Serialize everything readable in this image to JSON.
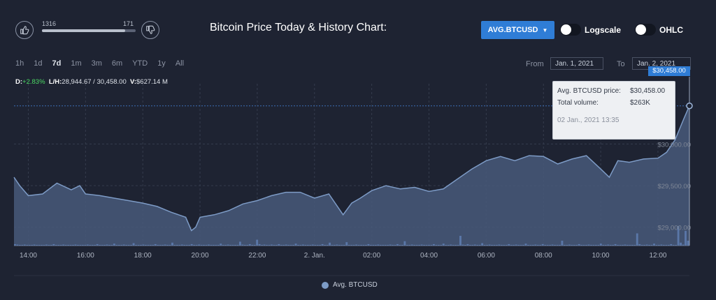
{
  "votes": {
    "up_count": "1316",
    "down_count": "171",
    "ratio": 0.885
  },
  "title": "Bitcoin Price Today & History Chart:",
  "series_button": {
    "label": "AVG.BTCUSD"
  },
  "toggles": {
    "logscale_label": "Logscale",
    "ohlc_label": "OHLC"
  },
  "ranges": [
    {
      "label": "1h",
      "active": false
    },
    {
      "label": "1d",
      "active": false
    },
    {
      "label": "7d",
      "active": true
    },
    {
      "label": "1m",
      "active": false
    },
    {
      "label": "3m",
      "active": false
    },
    {
      "label": "6m",
      "active": false
    },
    {
      "label": "YTD",
      "active": false
    },
    {
      "label": "1y",
      "active": false
    },
    {
      "label": "All",
      "active": false
    }
  ],
  "date_range": {
    "from_label": "From",
    "from_value": "Jan. 1, 2021",
    "to_label": "To",
    "to_value": "Jan. 2, 2021"
  },
  "stats": {
    "d_label": "D:",
    "d_value": "+2.83%",
    "lh_label": "L/H:",
    "lh_value": "28,944.67 / 30,458.00",
    "v_label": "V:",
    "v_value": "$627.14 M"
  },
  "tooltip": {
    "price_label": "Avg. BTCUSD price:",
    "price_value": "$30,458.00",
    "volume_label": "Total volume:",
    "volume_value": "$263K",
    "time": "02 Jan., 2021 13:35"
  },
  "price_flag": "$30,458.00",
  "colors": {
    "line": "#7d9bc6",
    "area": "#48597a",
    "volume": "#5a77a8",
    "grid": "#353c4d",
    "accent": "#2f7dd6"
  },
  "chart_data": {
    "type": "area",
    "x_ticks": [
      "14:00",
      "16:00",
      "18:00",
      "20:00",
      "22:00",
      "2. Jan.",
      "02:00",
      "04:00",
      "06:00",
      "08:00",
      "10:00",
      "12:00"
    ],
    "y_ticks": [
      "$29,000.00",
      "$29,500.00",
      "$30,000.00"
    ],
    "y_tick_values": [
      29000,
      29500,
      30000
    ],
    "ylim": [
      28780,
      30640
    ],
    "xlim": [
      13.5,
      37.1
    ],
    "series": [
      {
        "name": "Avg. BTCUSD",
        "x": [
          13.5,
          13.7,
          14.0,
          14.5,
          15.0,
          15.5,
          15.8,
          16.0,
          16.5,
          17.0,
          17.5,
          18.0,
          18.5,
          19.0,
          19.5,
          19.7,
          19.85,
          20.0,
          20.5,
          21.0,
          21.5,
          22.0,
          22.5,
          23.0,
          23.5,
          24.0,
          24.5,
          25.0,
          25.3,
          25.6,
          26.0,
          26.5,
          27.0,
          27.5,
          28.0,
          28.5,
          29.0,
          29.5,
          30.0,
          30.5,
          31.0,
          31.5,
          32.0,
          32.5,
          33.0,
          33.5,
          34.0,
          34.3,
          34.6,
          35.0,
          35.5,
          36.0,
          36.3,
          36.6,
          36.9,
          37.1
        ],
        "y": [
          29600,
          29500,
          29380,
          29400,
          29530,
          29450,
          29500,
          29400,
          29380,
          29350,
          29320,
          29290,
          29250,
          29180,
          29120,
          28960,
          29000,
          29120,
          29150,
          29200,
          29280,
          29320,
          29380,
          29420,
          29420,
          29350,
          29400,
          29150,
          29290,
          29350,
          29440,
          29500,
          29460,
          29480,
          29430,
          29460,
          29580,
          29700,
          29800,
          29850,
          29800,
          29860,
          29850,
          29760,
          29820,
          29860,
          29700,
          29600,
          29800,
          29780,
          29820,
          29830,
          29900,
          30050,
          30300,
          30458
        ]
      }
    ],
    "volume": [
      3,
      2,
      1,
      1,
      2,
      1,
      1,
      1,
      2,
      1,
      1,
      1,
      1,
      2,
      1,
      1,
      3,
      1,
      1,
      1,
      2,
      1,
      1,
      1,
      1,
      2,
      1,
      1,
      1,
      1,
      2,
      1,
      1,
      1,
      3,
      1,
      1,
      1,
      2,
      1,
      1,
      4,
      1,
      1,
      1,
      2,
      1,
      1,
      1,
      5,
      1,
      1,
      1,
      2,
      1,
      1,
      1,
      1,
      3,
      1,
      1,
      1,
      2,
      1,
      1,
      6,
      1,
      1,
      1,
      2,
      1,
      1,
      1,
      3,
      1,
      1,
      2,
      1,
      1,
      1,
      2,
      1,
      1,
      1,
      1,
      4,
      1,
      1,
      2,
      1,
      1,
      1,
      1,
      8,
      2,
      1,
      1,
      3,
      1,
      1,
      12,
      3,
      1,
      2,
      1,
      1,
      2,
      1,
      1,
      3,
      1,
      1,
      2,
      1,
      1,
      1,
      4,
      1,
      1,
      2,
      1,
      1,
      1,
      2,
      1,
      1,
      1,
      3,
      1,
      1,
      6,
      1,
      1,
      2,
      1,
      1,
      1,
      7,
      1,
      1,
      1,
      2,
      1,
      1,
      1,
      1,
      3,
      1,
      1,
      1,
      2,
      1,
      1,
      1,
      1,
      2,
      1,
      1,
      3,
      1,
      1,
      9,
      1,
      1,
      2,
      1,
      1,
      1,
      2,
      1,
      1,
      1,
      1,
      3,
      1,
      1,
      1,
      4,
      1,
      1,
      2,
      1,
      1,
      1,
      20,
      2,
      1,
      3,
      1,
      1,
      2,
      1,
      1,
      5,
      1,
      1,
      2,
      1,
      1,
      1,
      2,
      1,
      1,
      1,
      3,
      1,
      1,
      2,
      1,
      1,
      1,
      4,
      1,
      1,
      1,
      2,
      1,
      1,
      3,
      1,
      1,
      1,
      2,
      1,
      1,
      1,
      10,
      1,
      1,
      2,
      1,
      1,
      1,
      3,
      1,
      1,
      1,
      2,
      1,
      1,
      1,
      1,
      4,
      1,
      1,
      2,
      1,
      1,
      3,
      1,
      1,
      1,
      2,
      1,
      1,
      1,
      1,
      25,
      3,
      1,
      1,
      2,
      1,
      1,
      4,
      1,
      1,
      2,
      1,
      1,
      1,
      3,
      1,
      1,
      40,
      6,
      2,
      30,
      10
    ]
  },
  "legend": {
    "label": "Avg. BTCUSD"
  }
}
